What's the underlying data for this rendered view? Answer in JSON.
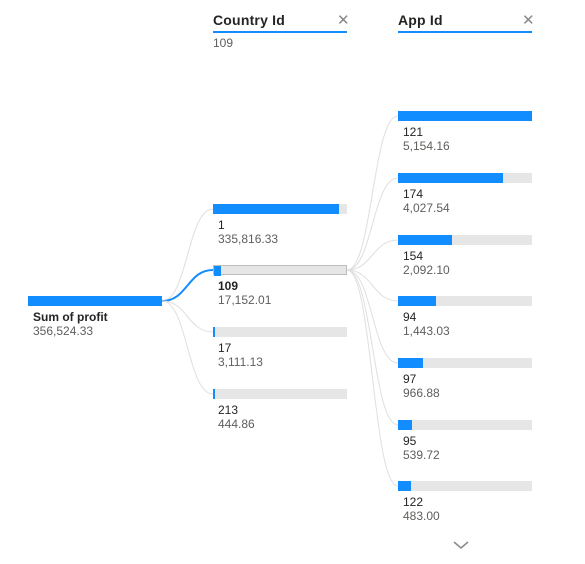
{
  "root": {
    "label": "Sum of profit",
    "value": "356,524.33",
    "fraction": 1.0
  },
  "level1": {
    "header": "Country Id",
    "subtitle": "109",
    "items": [
      {
        "label": "1",
        "value": "335,816.33",
        "fraction": 0.9419,
        "selected": false
      },
      {
        "label": "109",
        "value": "17,152.01",
        "fraction": 0.0481,
        "selected": true
      },
      {
        "label": "17",
        "value": "3,111.13",
        "fraction": 0.0087,
        "selected": false
      },
      {
        "label": "213",
        "value": "444.86",
        "fraction": 0.0012,
        "selected": false
      }
    ]
  },
  "level2": {
    "header": "App Id",
    "items": [
      {
        "label": "121",
        "value": "5,154.16",
        "fraction": 1.0
      },
      {
        "label": "174",
        "value": "4,027.54",
        "fraction": 0.7814
      },
      {
        "label": "154",
        "value": "2,092.10",
        "fraction": 0.4059
      },
      {
        "label": "94",
        "value": "1,443.03",
        "fraction": 0.28
      },
      {
        "label": "97",
        "value": "966.88",
        "fraction": 0.1876
      },
      {
        "label": "95",
        "value": "539.72",
        "fraction": 0.1047
      },
      {
        "label": "122",
        "value": "483.00",
        "fraction": 0.0937
      }
    ]
  },
  "icons": {
    "close": "close-icon",
    "more": "chevron-down-icon"
  },
  "colors": {
    "accent": "#118dff",
    "track": "#e6e6e6"
  }
}
